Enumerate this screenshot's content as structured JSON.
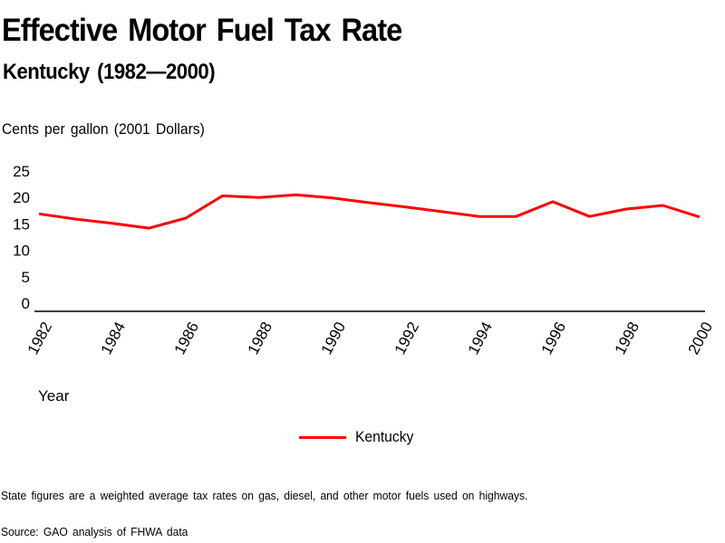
{
  "chart_data": {
    "type": "line",
    "title": "Effective Motor Fuel Tax Rate",
    "subtitle": "Kentucky (1982—2000)",
    "ylabel": "Cents per gallon (2001 Dollars)",
    "xlabel": "Year",
    "ylim": [
      0,
      25
    ],
    "yticks": [
      "0",
      "5",
      "10",
      "15",
      "20",
      "25"
    ],
    "ytick_values": [
      0,
      5,
      10,
      15,
      20,
      25
    ],
    "xlim": [
      1982,
      2000
    ],
    "xticks": [
      "1982",
      "1984",
      "1986",
      "1988",
      "1990",
      "1992",
      "1994",
      "1996",
      "1998",
      "2000"
    ],
    "xtick_values": [
      1982,
      1984,
      1986,
      1988,
      1990,
      1992,
      1994,
      1996,
      1998,
      2000
    ],
    "grid": false,
    "legend_position": "bottom-center",
    "x": [
      1982,
      1983,
      1984,
      1985,
      1986,
      1987,
      1988,
      1989,
      1990,
      1991,
      1992,
      1993,
      1994,
      1995,
      1996,
      1997,
      1998,
      1999,
      2000
    ],
    "series": [
      {
        "name": "Kentucky",
        "color": "#ff0000",
        "values": [
          16.9,
          15.9,
          15.1,
          14.2,
          16.1,
          20.3,
          20.0,
          20.5,
          19.9,
          19.0,
          18.2,
          17.3,
          16.4,
          16.4,
          19.2,
          16.4,
          17.8,
          18.5,
          16.3
        ]
      }
    ]
  },
  "footer": {
    "note": "State figures are a weighted average tax rates on gas, diesel, and other motor fuels used on highways.",
    "source": "Source: GAO analysis of FHWA data"
  }
}
